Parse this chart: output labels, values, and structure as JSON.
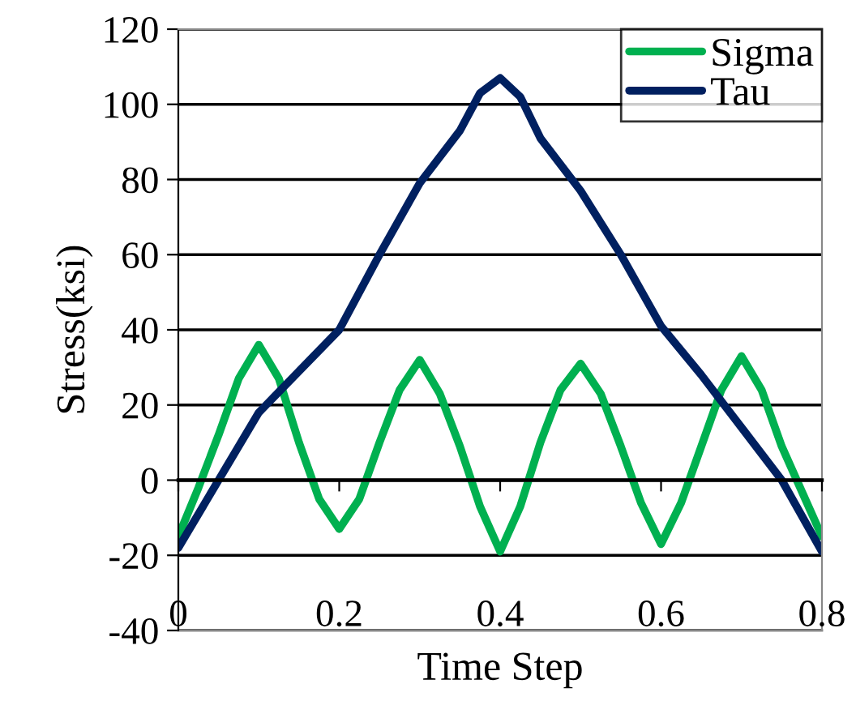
{
  "chart_data": {
    "type": "line",
    "xlabel": "Time Step",
    "ylabel": "Stress(ksi)",
    "xlim": [
      0,
      0.8
    ],
    "xticks": [
      0,
      0.2,
      0.4,
      0.6,
      0.8
    ],
    "ylim": [
      -40,
      120
    ],
    "yticks": [
      -40,
      -20,
      0,
      20,
      40,
      60,
      80,
      100,
      120
    ],
    "grid": "y",
    "legend": "top right",
    "series": [
      {
        "name": "Sigma",
        "color": "#00b050",
        "x": [
          0,
          0.025,
          0.05,
          0.075,
          0.1,
          0.125,
          0.15,
          0.175,
          0.2,
          0.225,
          0.25,
          0.275,
          0.3,
          0.325,
          0.35,
          0.375,
          0.4,
          0.425,
          0.45,
          0.475,
          0.5,
          0.525,
          0.55,
          0.575,
          0.6,
          0.625,
          0.65,
          0.675,
          0.7,
          0.725,
          0.75,
          0.775,
          0.8
        ],
        "values": [
          -15,
          -2,
          12,
          27,
          36,
          27,
          10,
          -5,
          -13,
          -5,
          10,
          24,
          32,
          23,
          9,
          -7,
          -19,
          -7,
          10,
          24,
          31,
          23,
          9,
          -6,
          -17,
          -6,
          9,
          24,
          33,
          24,
          9,
          -3,
          -15
        ]
      },
      {
        "name": "Tau",
        "color": "#002060",
        "x": [
          0,
          0.1,
          0.2,
          0.25,
          0.3,
          0.35,
          0.375,
          0.4,
          0.425,
          0.45,
          0.5,
          0.55,
          0.6,
          0.65,
          0.7,
          0.75,
          0.8
        ],
        "values": [
          -18,
          18,
          40,
          60,
          79,
          93,
          103,
          107,
          102,
          91,
          77,
          60,
          41,
          28,
          14,
          0,
          -19
        ]
      }
    ]
  }
}
